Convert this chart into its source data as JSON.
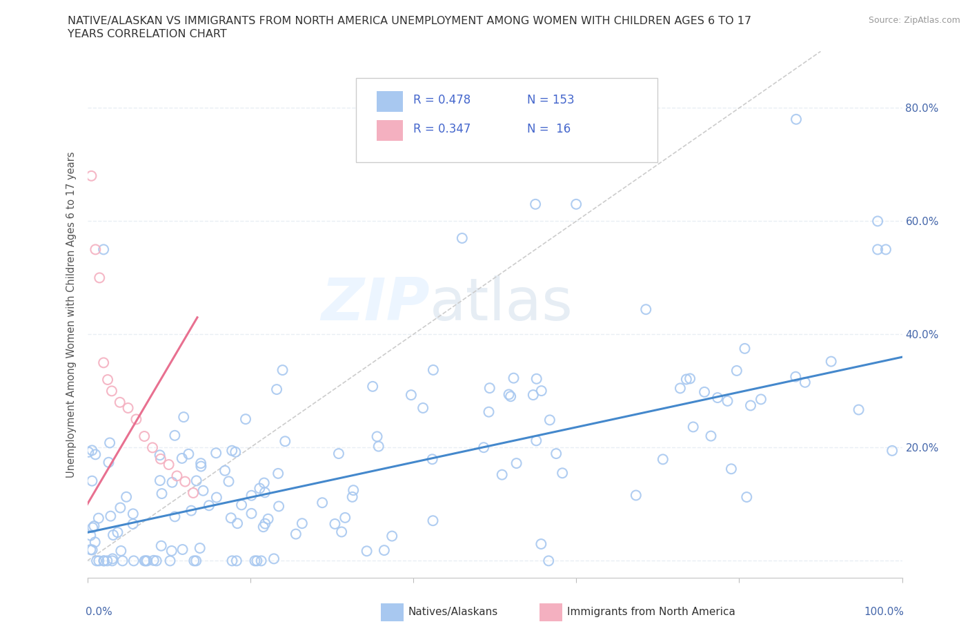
{
  "title_line1": "NATIVE/ALASKAN VS IMMIGRANTS FROM NORTH AMERICA UNEMPLOYMENT AMONG WOMEN WITH CHILDREN AGES 6 TO 17",
  "title_line2": "YEARS CORRELATION CHART",
  "source": "Source: ZipAtlas.com",
  "ylabel": "Unemployment Among Women with Children Ages 6 to 17 years",
  "ytick_values": [
    0.0,
    0.2,
    0.4,
    0.6,
    0.8
  ],
  "ytick_labels_right": [
    "",
    "20.0%",
    "40.0%",
    "60.0%",
    "80.0%"
  ],
  "xlim": [
    0.0,
    1.0
  ],
  "ylim": [
    -0.03,
    0.9
  ],
  "watermark_zip": "ZIP",
  "watermark_atlas": "atlas",
  "legend_r1": "R = 0.478",
  "legend_n1": "N = 153",
  "legend_r2": "R = 0.347",
  "legend_n2": "N =  16",
  "blue_scatter_color": "#a8c8f0",
  "pink_scatter_color": "#f4b0c0",
  "blue_line_color": "#4488cc",
  "pink_line_color": "#e87090",
  "dashed_line_color": "#cccccc",
  "grid_color": "#e8eef4",
  "title_color": "#333333",
  "source_color": "#999999",
  "axis_label_color": "#4466aa",
  "legend_label_color": "#4466cc",
  "bottom_legend_color": "#333333",
  "ylabel_color": "#555555"
}
